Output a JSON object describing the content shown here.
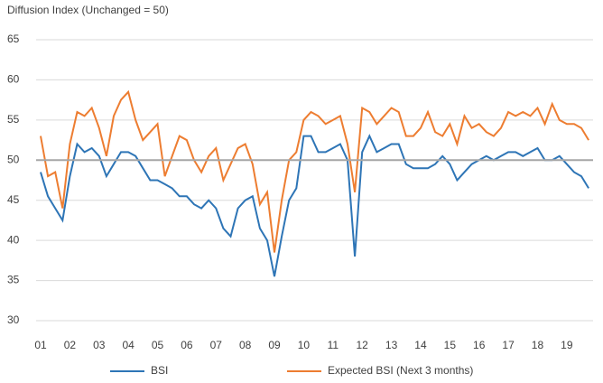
{
  "chart_data": {
    "type": "line",
    "y_axis_label": "Diffusion Index (Unchanged = 50)",
    "x": [
      2001,
      2001.25,
      2001.5,
      2001.75,
      2002,
      2002.25,
      2002.5,
      2002.75,
      2003,
      2003.25,
      2003.5,
      2003.75,
      2004,
      2004.25,
      2004.5,
      2004.75,
      2005,
      2005.25,
      2005.5,
      2005.75,
      2006,
      2006.25,
      2006.5,
      2006.75,
      2007,
      2007.25,
      2007.5,
      2007.75,
      2008,
      2008.25,
      2008.5,
      2008.75,
      2009,
      2009.25,
      2009.5,
      2009.75,
      2010,
      2010.25,
      2010.5,
      2010.75,
      2011,
      2011.25,
      2011.5,
      2011.75,
      2012,
      2012.25,
      2012.5,
      2012.75,
      2013,
      2013.25,
      2013.5,
      2013.75,
      2014,
      2014.25,
      2014.5,
      2014.75,
      2015,
      2015.25,
      2015.5,
      2015.75,
      2016,
      2016.25,
      2016.5,
      2016.75,
      2017,
      2017.25,
      2017.5,
      2017.75,
      2018,
      2018.25,
      2018.5,
      2018.75,
      2019,
      2019.25,
      2019.5,
      2019.75
    ],
    "series": [
      {
        "name": "BSI",
        "color": "#2e75b6",
        "values": [
          48.5,
          45.5,
          44,
          42.5,
          48,
          52,
          51,
          51.5,
          50.5,
          48,
          49.5,
          51,
          51,
          50.5,
          49,
          47.5,
          47.5,
          47,
          46.5,
          45.5,
          45.5,
          44.5,
          44,
          45,
          44,
          41.5,
          40.5,
          44,
          45,
          45.5,
          41.5,
          40,
          35.5,
          40.5,
          45,
          46.5,
          53,
          53,
          51,
          51,
          51.5,
          52,
          50,
          38,
          51,
          53,
          51,
          51.5,
          52,
          52,
          49.5,
          49,
          49,
          49,
          49.5,
          50.5,
          49.5,
          47.5,
          48.5,
          49.5,
          50,
          50.5,
          50,
          50.5,
          51,
          51,
          50.5,
          51,
          51.5,
          50,
          50,
          50.5,
          49.5,
          48.5,
          48,
          46.5
        ]
      },
      {
        "name": "Expected BSI (Next 3 months)",
        "color": "#ed7d31",
        "values": [
          53,
          48,
          48.5,
          44,
          52,
          56,
          55.5,
          56.5,
          54,
          50.5,
          55.5,
          57.5,
          58.5,
          55,
          52.5,
          53.5,
          54.5,
          48,
          50.5,
          53,
          52.5,
          50,
          48.5,
          50.5,
          51.5,
          47.5,
          49.5,
          51.5,
          52,
          49.5,
          44.5,
          46,
          38.5,
          45,
          50,
          51,
          55,
          56,
          55.5,
          54.5,
          55,
          55.5,
          52,
          46,
          56.5,
          56,
          54.5,
          55.5,
          56.5,
          56,
          53,
          53,
          54,
          56,
          53.5,
          53,
          54.5,
          52,
          55.5,
          54,
          54.5,
          53.5,
          53,
          54,
          56,
          55.5,
          56,
          55.5,
          56.5,
          54.5,
          57,
          55,
          54.5,
          54.5,
          54,
          52.5
        ]
      }
    ],
    "xlim": [
      2001,
      2019.9
    ],
    "xticks": [
      {
        "value": 2001,
        "label": "01"
      },
      {
        "value": 2002,
        "label": "02"
      },
      {
        "value": 2003,
        "label": "03"
      },
      {
        "value": 2004,
        "label": "04"
      },
      {
        "value": 2005,
        "label": "05"
      },
      {
        "value": 2006,
        "label": "06"
      },
      {
        "value": 2007,
        "label": "07"
      },
      {
        "value": 2008,
        "label": "08"
      },
      {
        "value": 2009,
        "label": "09"
      },
      {
        "value": 2010,
        "label": "10"
      },
      {
        "value": 2011,
        "label": "11"
      },
      {
        "value": 2012,
        "label": "12"
      },
      {
        "value": 2013,
        "label": "13"
      },
      {
        "value": 2014,
        "label": "14"
      },
      {
        "value": 2015,
        "label": "15"
      },
      {
        "value": 2016,
        "label": "16"
      },
      {
        "value": 2017,
        "label": "17"
      },
      {
        "value": 2018,
        "label": "18"
      },
      {
        "value": 2019,
        "label": "19"
      }
    ],
    "ylim": [
      30,
      65
    ],
    "yticks": [
      30,
      35,
      40,
      45,
      50,
      55,
      60,
      65
    ],
    "reference_line": 50,
    "grid": true,
    "legend": "bottom"
  }
}
